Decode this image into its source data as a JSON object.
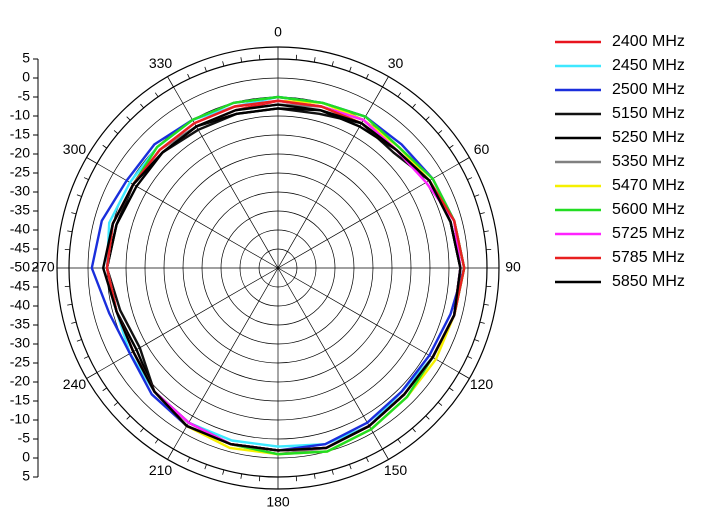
{
  "chart_data": {
    "type": "polar",
    "theta": [
      0,
      15,
      30,
      45,
      60,
      75,
      90,
      105,
      120,
      135,
      150,
      165,
      180,
      195,
      210,
      225,
      240,
      255,
      270,
      285,
      300,
      315,
      330,
      345
    ],
    "thetaticks": [
      0,
      30,
      60,
      90,
      120,
      150,
      180,
      210,
      240,
      270,
      300,
      330
    ],
    "rlim": [
      -50,
      5
    ],
    "rticks": [
      -50,
      -45,
      -40,
      -35,
      -30,
      -25,
      -20,
      -15,
      -10,
      -5,
      0,
      5
    ],
    "grid": true,
    "legend": "right",
    "series": [
      {
        "name": "2400 MHz",
        "color": "#e8141e",
        "values": [
          -6,
          -6,
          -5,
          -6,
          -4,
          -2,
          -1,
          -2,
          -3,
          -3,
          -2,
          -1,
          -2,
          -2,
          -2,
          -4,
          -6,
          -6,
          -5,
          -5,
          -6,
          -7,
          -7,
          -7
        ]
      },
      {
        "name": "2450 MHz",
        "color": "#3ee8ff",
        "values": [
          -5,
          -5,
          -4,
          -5,
          -4,
          -2,
          -1,
          -2,
          -3,
          -4,
          -2,
          -2,
          -3,
          -3,
          -3,
          -4,
          -5,
          -6,
          -5,
          -4,
          -5,
          -5,
          -5,
          -6
        ]
      },
      {
        "name": "2500 MHz",
        "color": "#1a2edc",
        "values": [
          -5,
          -5,
          -4,
          -4,
          -3,
          -2,
          -1,
          -3,
          -4,
          -4,
          -3,
          -2,
          -2,
          -2,
          -2,
          -3,
          -5,
          -4,
          -1,
          -2,
          -4,
          -4,
          -5,
          -5
        ]
      },
      {
        "name": "5150 MHz",
        "color": "#111111",
        "values": [
          -8,
          -8,
          -6,
          -7,
          -4,
          -3,
          -2,
          -2,
          -3,
          -3,
          -2,
          -1,
          -2,
          -2,
          -3,
          -4,
          -8,
          -7,
          -5,
          -6,
          -6,
          -7,
          -8,
          -8
        ]
      },
      {
        "name": "5250 MHz",
        "color": "#000000",
        "values": [
          -8,
          -7,
          -7,
          -6,
          -4,
          -3,
          -2,
          -2,
          -3,
          -3,
          -2,
          -1,
          -2,
          -2,
          -2,
          -4,
          -7,
          -6,
          -5,
          -6,
          -7,
          -7,
          -7,
          -8
        ]
      },
      {
        "name": "5350 MHz",
        "color": "#808080",
        "values": [
          -7,
          -6,
          -5,
          -6,
          -4,
          -2,
          -2,
          -2,
          -3,
          -3,
          -2,
          -1,
          -1,
          -2,
          -2,
          -4,
          -6,
          -6,
          -5,
          -5,
          -6,
          -6,
          -7,
          -7
        ]
      },
      {
        "name": "5470 MHz",
        "color": "#f5f000",
        "values": [
          -6,
          -5,
          -5,
          -5,
          -4,
          -2,
          -1,
          -2,
          -2,
          -2,
          -1,
          0,
          -1,
          -1,
          -2,
          -4,
          -6,
          -6,
          -5,
          -5,
          -6,
          -6,
          -6,
          -6
        ]
      },
      {
        "name": "5600 MHz",
        "color": "#22dd22",
        "values": [
          -5,
          -5,
          -4,
          -5,
          -3,
          -2,
          -1,
          -2,
          -3,
          -2,
          -1,
          0,
          -1,
          -2,
          -2,
          -4,
          -6,
          -6,
          -5,
          -5,
          -6,
          -5,
          -5,
          -5
        ]
      },
      {
        "name": "5725 MHz",
        "color": "#ff22ff",
        "values": [
          -6,
          -6,
          -5,
          -6,
          -5,
          -2,
          -2,
          -2,
          -3,
          -3,
          -2,
          -1,
          -2,
          -2,
          -3,
          -4,
          -6,
          -6,
          -5,
          -5,
          -6,
          -6,
          -6,
          -6
        ]
      },
      {
        "name": "5785 MHz",
        "color": "#e82020",
        "values": [
          -6,
          -6,
          -6,
          -6,
          -4,
          -2,
          -1,
          -2,
          -3,
          -3,
          -2,
          -1,
          -2,
          -2,
          -2,
          -4,
          -6,
          -6,
          -5,
          -5,
          -6,
          -6,
          -6,
          -6
        ]
      },
      {
        "name": "5850 MHz",
        "color": "#000000",
        "values": [
          -7,
          -7,
          -6,
          -6,
          -4,
          -3,
          -2,
          -2,
          -3,
          -3,
          -2,
          -1,
          -2,
          -2,
          -2,
          -4,
          -6,
          -6,
          -4,
          -5,
          -6,
          -7,
          -7,
          -7
        ]
      }
    ]
  }
}
